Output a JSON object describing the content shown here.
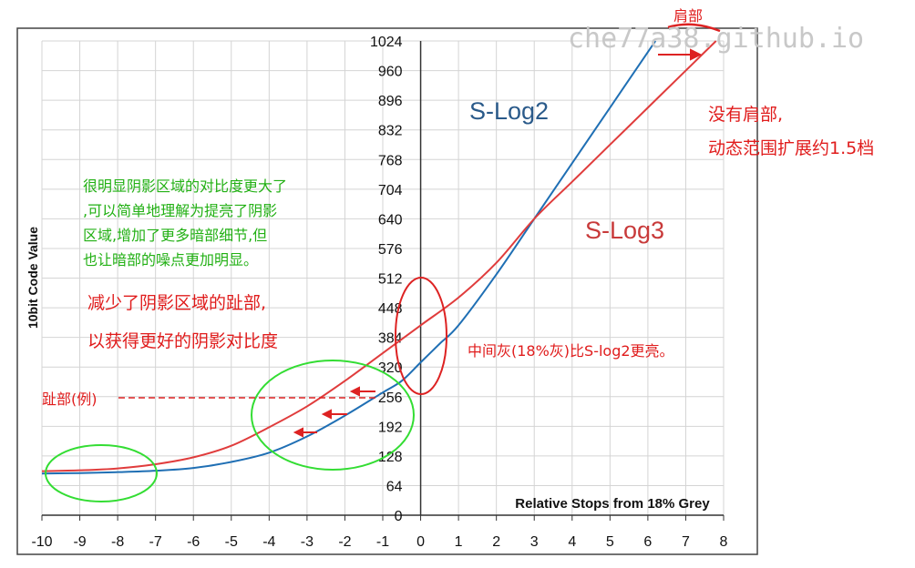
{
  "chart_data": {
    "type": "line",
    "xlabel": "Relative Stops from 18% Grey",
    "ylabel": "10bit Code Value",
    "xlim": [
      -10,
      8
    ],
    "ylim": [
      0,
      1024
    ],
    "grid": true,
    "x_ticks": [
      "-10",
      "-9",
      "-8",
      "-7",
      "-6",
      "-5",
      "-4",
      "-3",
      "-2",
      "-1",
      "0",
      "1",
      "2",
      "3",
      "4",
      "5",
      "6",
      "7",
      "8"
    ],
    "y_ticks": [
      "0",
      "64",
      "128",
      "192",
      "256",
      "320",
      "384",
      "448",
      "512",
      "576",
      "640",
      "704",
      "768",
      "832",
      "896",
      "960",
      "1024"
    ],
    "series": [
      {
        "name": "S-Log2",
        "color": "#1f6fb4",
        "x": [
          -10,
          -9,
          -8,
          -7,
          -6,
          -5,
          -4,
          -3,
          -2,
          -1,
          -0.5,
          0,
          0.5,
          1,
          2,
          3,
          4,
          5,
          6,
          6.2
        ],
        "y": [
          90,
          91,
          93,
          96,
          102,
          115,
          135,
          170,
          215,
          265,
          290,
          330,
          370,
          410,
          520,
          640,
          760,
          880,
          1000,
          1024
        ]
      },
      {
        "name": "S-Log3",
        "color": "#e03c3c",
        "x": [
          -10,
          -9,
          -8,
          -7,
          -6,
          -5,
          -4,
          -3,
          -2,
          -1,
          0,
          1,
          2,
          3,
          4,
          5,
          6,
          7,
          7.8
        ],
        "y": [
          95,
          97,
          101,
          110,
          125,
          150,
          190,
          235,
          290,
          350,
          410,
          470,
          545,
          640,
          720,
          800,
          880,
          960,
          1024
        ]
      }
    ]
  },
  "watermark": "che77a38.github.io",
  "annotations": {
    "shoulder": "肩部",
    "no_shoulder_line1": "没有肩部,",
    "no_shoulder_line2": "动态范围扩展约1.5档",
    "contrast_line1": "很明显阴影区域的对比度更大了",
    "contrast_line2": ",可以简单地理解为提亮了阴影",
    "contrast_line3": "区域,增加了更多暗部细节,但",
    "contrast_line4": "也让暗部的噪点更加明显。",
    "toe_reduce_line1": "减少了阴影区域的趾部,",
    "toe_reduce_line2": "以获得更好的阴影对比度",
    "mid_grey": "中间灰(18%灰)比S-log2更亮。",
    "toe_example": "趾部(例)"
  },
  "colors": {
    "annotation_green": "#22b014",
    "annotation_red": "#e01c1c",
    "ellipse_green": "#33dd33",
    "ellipse_red": "#dd2222",
    "grid": "#d4d4d4"
  }
}
